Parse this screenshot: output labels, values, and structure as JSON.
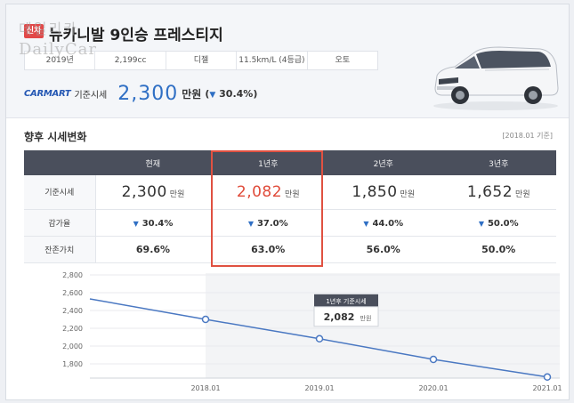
{
  "header": {
    "badge": "신차",
    "title": "뉴카니발 9인승 프레스티지",
    "watermark": [
      "데일리카",
      "DailyCar"
    ],
    "specs": [
      "2019년",
      "2,199cc",
      "디젤",
      "11.5km/L (4등급)",
      "오토"
    ]
  },
  "price": {
    "brand": "CARMART",
    "label": "기준시세",
    "value": "2,300",
    "unit": "만원",
    "change": "30.4%",
    "change_open": "(",
    "change_arrow": "▼",
    "change_close": ")"
  },
  "section": {
    "title": "향후 시세변화",
    "note": "[2018.01 기준]"
  },
  "table": {
    "columns": [
      "",
      "현재",
      "1년후",
      "2년후",
      "3년후"
    ],
    "rows": [
      {
        "label": "기준시세",
        "values": [
          "2,300",
          "2,082",
          "1,850",
          "1,652"
        ],
        "unit": "만원"
      },
      {
        "label": "감가율",
        "values": [
          "30.4%",
          "37.0%",
          "44.0%",
          "50.0%"
        ]
      },
      {
        "label": "잔존가치",
        "values": [
          "69.6%",
          "63.0%",
          "56.0%",
          "50.0%"
        ]
      }
    ],
    "highlight_column": 1
  },
  "chart_data": {
    "type": "line",
    "x": [
      "2017.01",
      "2018.01",
      "2019.01",
      "2020.01",
      "2021.01"
    ],
    "series": [
      {
        "values": [
          2530,
          2300,
          2082,
          1850,
          1652
        ]
      }
    ],
    "markers_from_index": 1,
    "xticks": [
      "2018.01",
      "2019.01",
      "2020.01",
      "2021.01"
    ],
    "yticks": [
      1800,
      2000,
      2200,
      2400,
      2600,
      2800
    ],
    "ytick_labels": [
      "1,800",
      "2,000",
      "2,200",
      "2,400",
      "2,600",
      "2,800"
    ],
    "ylim": [
      1640,
      2820
    ],
    "grid": true,
    "tooltip": {
      "title": "1년후 기준시세",
      "value": "2,082",
      "unit": "만원"
    },
    "colors": {
      "line": "#4a78c2",
      "shade": "#f3f4f6"
    }
  },
  "colors": {
    "accent": "#2f6fc4",
    "highlight": "#e05141",
    "header_bg": "#4a4f5c"
  }
}
